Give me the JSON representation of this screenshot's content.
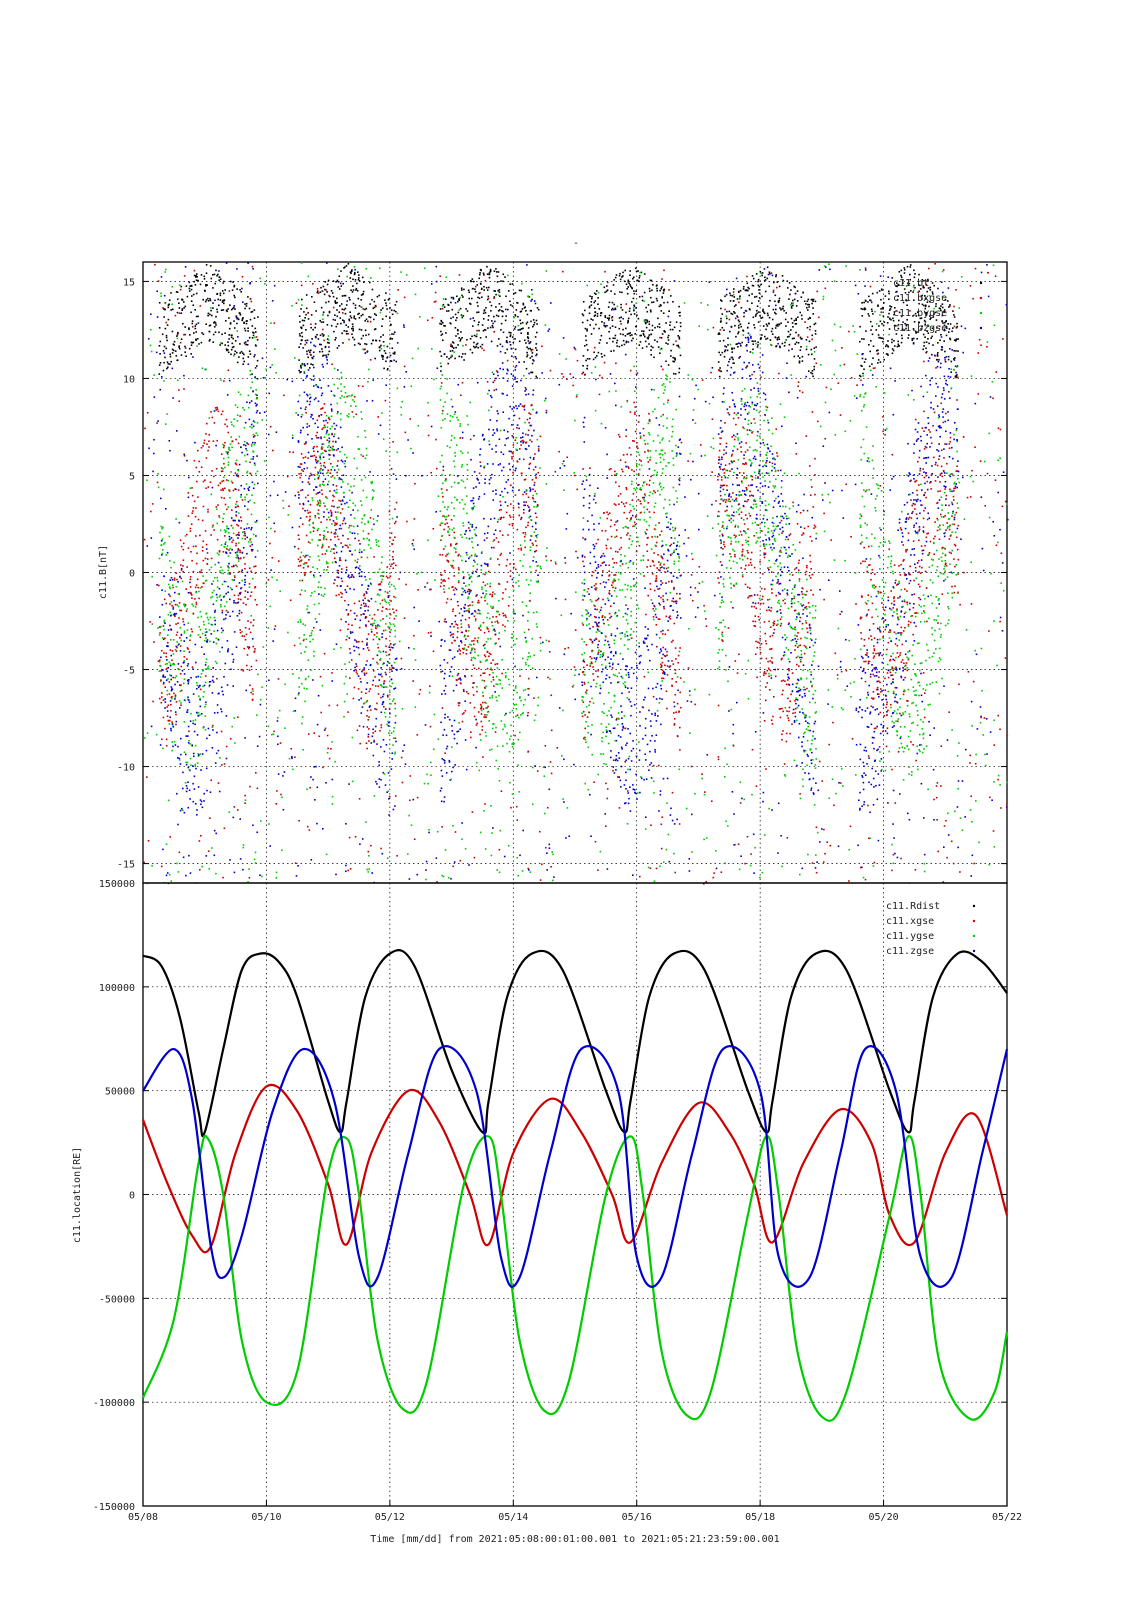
{
  "top_mark": "-",
  "x_axis": {
    "label": "Time [mm/dd]  from 2021:05:08:00:01:00.001  to  2021:05:21:23:59:00.001",
    "range_days": [
      0,
      14
    ],
    "tick_labels": [
      "05/08",
      "05/10",
      "05/12",
      "05/14",
      "05/16",
      "05/18",
      "05/20",
      "05/22"
    ],
    "tick_days": [
      0,
      2,
      4,
      6,
      8,
      10,
      12,
      14
    ]
  },
  "colors": {
    "black": "#000000",
    "red": "#cc0000",
    "green": "#00cc00",
    "blue": "#0000cc",
    "grid": "#000000"
  },
  "chart_data": [
    {
      "type": "scatter",
      "ylabel": "c11.B[nT]",
      "ylim": [
        -16,
        16
      ],
      "yticks": [
        15,
        10,
        5,
        0,
        -5,
        -10,
        -15
      ],
      "ytick_labels": [
        "15",
        "10",
        "5",
        "0",
        "-5",
        "-10",
        "-15"
      ],
      "grid": true,
      "legend_position": "top-right",
      "series": [
        {
          "name": "c11.bt",
          "color": "#000000"
        },
        {
          "name": "c11.bxgse",
          "color": "#cc0000"
        },
        {
          "name": "c11.bygse",
          "color": "#00cc00"
        },
        {
          "name": "c11.bzgse",
          "color": "#0000cc"
        }
      ],
      "note_values": "dense scattered points, mostly at perigee passes; values range -16..16 nT"
    },
    {
      "type": "line",
      "ylabel": "c11.location[RE]",
      "ylim": [
        -150000,
        150000
      ],
      "yticks": [
        150000,
        100000,
        50000,
        0,
        -50000,
        -100000,
        -150000
      ],
      "ytick_labels": [
        "150000",
        "100000",
        "50000",
        "0",
        "-50000",
        "-100000",
        "-150000"
      ],
      "grid": true,
      "legend_position": "top-right",
      "orbit_period_days": 2.3,
      "series": [
        {
          "name": "c11.Rdist",
          "color": "#000000",
          "x": [
            0,
            0.3,
            0.6,
            0.9,
            1.0,
            1.3,
            1.6,
            1.9,
            2.2,
            2.5,
            3.0,
            3.2,
            3.3,
            3.6,
            4.0,
            4.4,
            5.0,
            5.5,
            5.6,
            5.9,
            6.3,
            6.8,
            7.5,
            7.8,
            7.9,
            8.2,
            8.6,
            9.1,
            9.8,
            10.1,
            10.2,
            10.5,
            10.9,
            11.4,
            12.1,
            12.4,
            12.5,
            12.8,
            13.2,
            13.6,
            14.0
          ],
          "values": [
            115000,
            110000,
            85000,
            40000,
            30000,
            70000,
            108000,
            116000,
            112000,
            95000,
            45000,
            30000,
            45000,
            95000,
            116000,
            110000,
            60000,
            30000,
            45000,
            95000,
            116000,
            108000,
            50000,
            30000,
            45000,
            95000,
            116000,
            108000,
            50000,
            30000,
            45000,
            95000,
            116000,
            108000,
            50000,
            30000,
            45000,
            95000,
            116000,
            112000,
            97000
          ]
        },
        {
          "name": "c11.xgse",
          "color": "#cc0000",
          "x": [
            0,
            0.4,
            0.8,
            1.1,
            1.5,
            2.0,
            2.5,
            3.0,
            3.3,
            3.7,
            4.3,
            4.8,
            5.3,
            5.6,
            6.0,
            6.6,
            7.1,
            7.6,
            7.9,
            8.4,
            9.0,
            9.5,
            9.9,
            10.2,
            10.7,
            11.3,
            11.8,
            12.1,
            12.5,
            13.0,
            13.5,
            14.0
          ],
          "values": [
            36000,
            5000,
            -20000,
            -25000,
            20000,
            52000,
            40000,
            5000,
            -24000,
            20000,
            50000,
            35000,
            0,
            -24000,
            20000,
            46000,
            30000,
            0,
            -23000,
            15000,
            44000,
            30000,
            5000,
            -23000,
            15000,
            41000,
            25000,
            -10000,
            -23000,
            20000,
            38000,
            -10000
          ]
        },
        {
          "name": "c11.ygse",
          "color": "#00cc00",
          "x": [
            0,
            0.5,
            0.9,
            1.05,
            1.3,
            1.6,
            2.0,
            2.5,
            3.0,
            3.3,
            3.5,
            3.8,
            4.2,
            4.6,
            5.2,
            5.6,
            5.8,
            6.1,
            6.5,
            6.9,
            7.5,
            7.9,
            8.1,
            8.4,
            8.8,
            9.2,
            9.8,
            10.1,
            10.3,
            10.6,
            11.0,
            11.4,
            12.1,
            12.4,
            12.6,
            12.9,
            13.4,
            13.8,
            14.0
          ],
          "values": [
            -98000,
            -60000,
            15000,
            27000,
            0,
            -70000,
            -100000,
            -85000,
            10000,
            27000,
            0,
            -70000,
            -103000,
            -90000,
            5000,
            28000,
            0,
            -70000,
            -104000,
            -90000,
            0,
            28000,
            0,
            -75000,
            -106000,
            -95000,
            -10000,
            28000,
            0,
            -75000,
            -107000,
            -95000,
            -10000,
            28000,
            0,
            -80000,
            -108000,
            -95000,
            -66000
          ]
        },
        {
          "name": "c11.zgse",
          "color": "#0000cc",
          "x": [
            0,
            0.5,
            0.8,
            1.1,
            1.3,
            1.6,
            2.1,
            2.6,
            3.1,
            3.5,
            3.8,
            4.3,
            4.8,
            5.4,
            5.8,
            6.1,
            6.6,
            7.1,
            7.7,
            8.0,
            8.4,
            8.9,
            9.4,
            10.0,
            10.3,
            10.8,
            11.3,
            11.7,
            12.2,
            12.6,
            13.1,
            13.6,
            14.0
          ],
          "values": [
            50000,
            70000,
            45000,
            -25000,
            -40000,
            -20000,
            40000,
            70000,
            45000,
            -30000,
            -40000,
            20000,
            70000,
            50000,
            -30000,
            -40000,
            20000,
            70000,
            50000,
            -30000,
            -40000,
            20000,
            70000,
            50000,
            -30000,
            -40000,
            20000,
            70000,
            50000,
            -30000,
            -40000,
            20000,
            70000
          ]
        }
      ]
    }
  ]
}
